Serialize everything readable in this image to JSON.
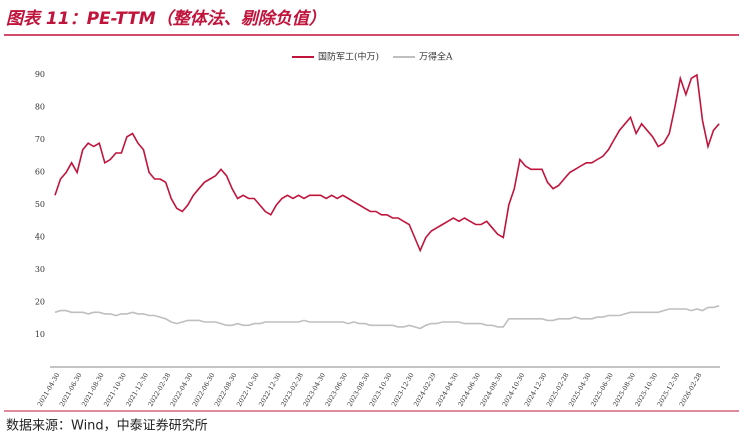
{
  "chart_data": {
    "type": "line",
    "title": "图表 11：PE-TTM（整体法、剔除负值）",
    "source": "数据来源：Wind，中泰证券研究所",
    "categories": [
      "2021-04-30",
      null,
      null,
      null,
      "2021-06-30",
      null,
      null,
      null,
      "2021-08-30",
      null,
      null,
      null,
      "2021-10-30",
      null,
      null,
      null,
      "2021-12-30",
      null,
      null,
      null,
      "2022-02-28",
      null,
      null,
      null,
      "2022-04-30",
      null,
      null,
      null,
      "2022-06-30",
      null,
      null,
      null,
      "2022-08-30",
      null,
      null,
      null,
      "2022-10-30",
      null,
      null,
      null,
      "2022-12-30",
      null,
      null,
      null,
      "2023-02-28",
      null,
      null,
      null,
      "2023-04-30",
      null,
      null,
      null,
      "2023-06-30",
      null,
      null,
      null,
      "2023-08-30",
      null,
      null,
      null,
      "2023-10-30",
      null,
      null,
      null,
      "2023-12-30",
      null,
      null,
      null,
      "2024-02-29",
      null,
      null,
      null,
      "2024-04-30",
      null,
      null,
      null,
      "2024-06-30",
      null,
      null,
      null,
      "2024-08-30",
      null,
      null,
      null,
      "2024-10-30",
      null,
      null,
      null,
      "2024-12-30",
      null,
      null,
      null,
      "2025-02-28",
      null,
      null,
      null,
      "2025-04-30",
      null,
      null,
      null,
      "2025-06-30",
      null,
      null,
      null,
      "2025-08-30",
      null,
      null,
      null,
      "2025-10-30",
      null,
      null,
      null,
      "2025-12-30",
      null,
      null,
      null,
      "2026-02-28",
      null,
      null,
      null,
      null
    ],
    "series": [
      {
        "name": "国防军工(中万)",
        "color": "#c0143c",
        "values": [
          53,
          58,
          60,
          63,
          60,
          67,
          69,
          68,
          69,
          63,
          64,
          66,
          66,
          71,
          72,
          69,
          67,
          60,
          58,
          58,
          57,
          52,
          49,
          48,
          50,
          53,
          55,
          57,
          58,
          59,
          61,
          59,
          55,
          52,
          53,
          52,
          52,
          50,
          48,
          47,
          50,
          52,
          53,
          52,
          53,
          52,
          53,
          53,
          53,
          52,
          53,
          52,
          53,
          52,
          51,
          50,
          49,
          48,
          48,
          47,
          47,
          46,
          46,
          45,
          44,
          40,
          36,
          40,
          42,
          43,
          44,
          45,
          46,
          45,
          46,
          45,
          44,
          44,
          45,
          43,
          41,
          40,
          50,
          55,
          64,
          62,
          61,
          61,
          61,
          57,
          55,
          56,
          58,
          60,
          61,
          62,
          63,
          63,
          64,
          65,
          67,
          70,
          73,
          75,
          77,
          72,
          75,
          73,
          71,
          68,
          69,
          72,
          80,
          89,
          84,
          89,
          90,
          76,
          68,
          73,
          75
        ]
      },
      {
        "name": "万得全A",
        "color": "#bfbfbf",
        "values": [
          17,
          17.5,
          17.5,
          17,
          17,
          17,
          16.5,
          17,
          17,
          16.5,
          16.5,
          16,
          16.5,
          16.5,
          17,
          16.5,
          16.5,
          16,
          16,
          15.5,
          15,
          14,
          13.5,
          14,
          14.5,
          14.5,
          14.5,
          14,
          14,
          14,
          13.5,
          13,
          13,
          13.5,
          13,
          13,
          13.5,
          13.5,
          14,
          14,
          14,
          14,
          14,
          14,
          14,
          14.5,
          14,
          14,
          14,
          14,
          14,
          14,
          14,
          13.5,
          14,
          13.5,
          13.5,
          13,
          13,
          13,
          13,
          13,
          12.5,
          12.5,
          13,
          12.5,
          12,
          13,
          13.5,
          13.5,
          14,
          14,
          14,
          14,
          13.5,
          13.5,
          13.5,
          13.5,
          13,
          13,
          12.5,
          12.5,
          15,
          15,
          15,
          15,
          15,
          15,
          15,
          14.5,
          14.5,
          15,
          15,
          15,
          15.5,
          15,
          15,
          15,
          15.5,
          15.5,
          16,
          16,
          16,
          16.5,
          17,
          17,
          17,
          17,
          17,
          17,
          17.5,
          18,
          18,
          18,
          18,
          17.5,
          18,
          17.5,
          18.5,
          18.5,
          19
        ]
      }
    ],
    "ylim": [
      0,
      90
    ],
    "yticks": [
      10,
      20,
      30,
      40,
      50,
      60,
      70,
      80,
      90
    ]
  }
}
